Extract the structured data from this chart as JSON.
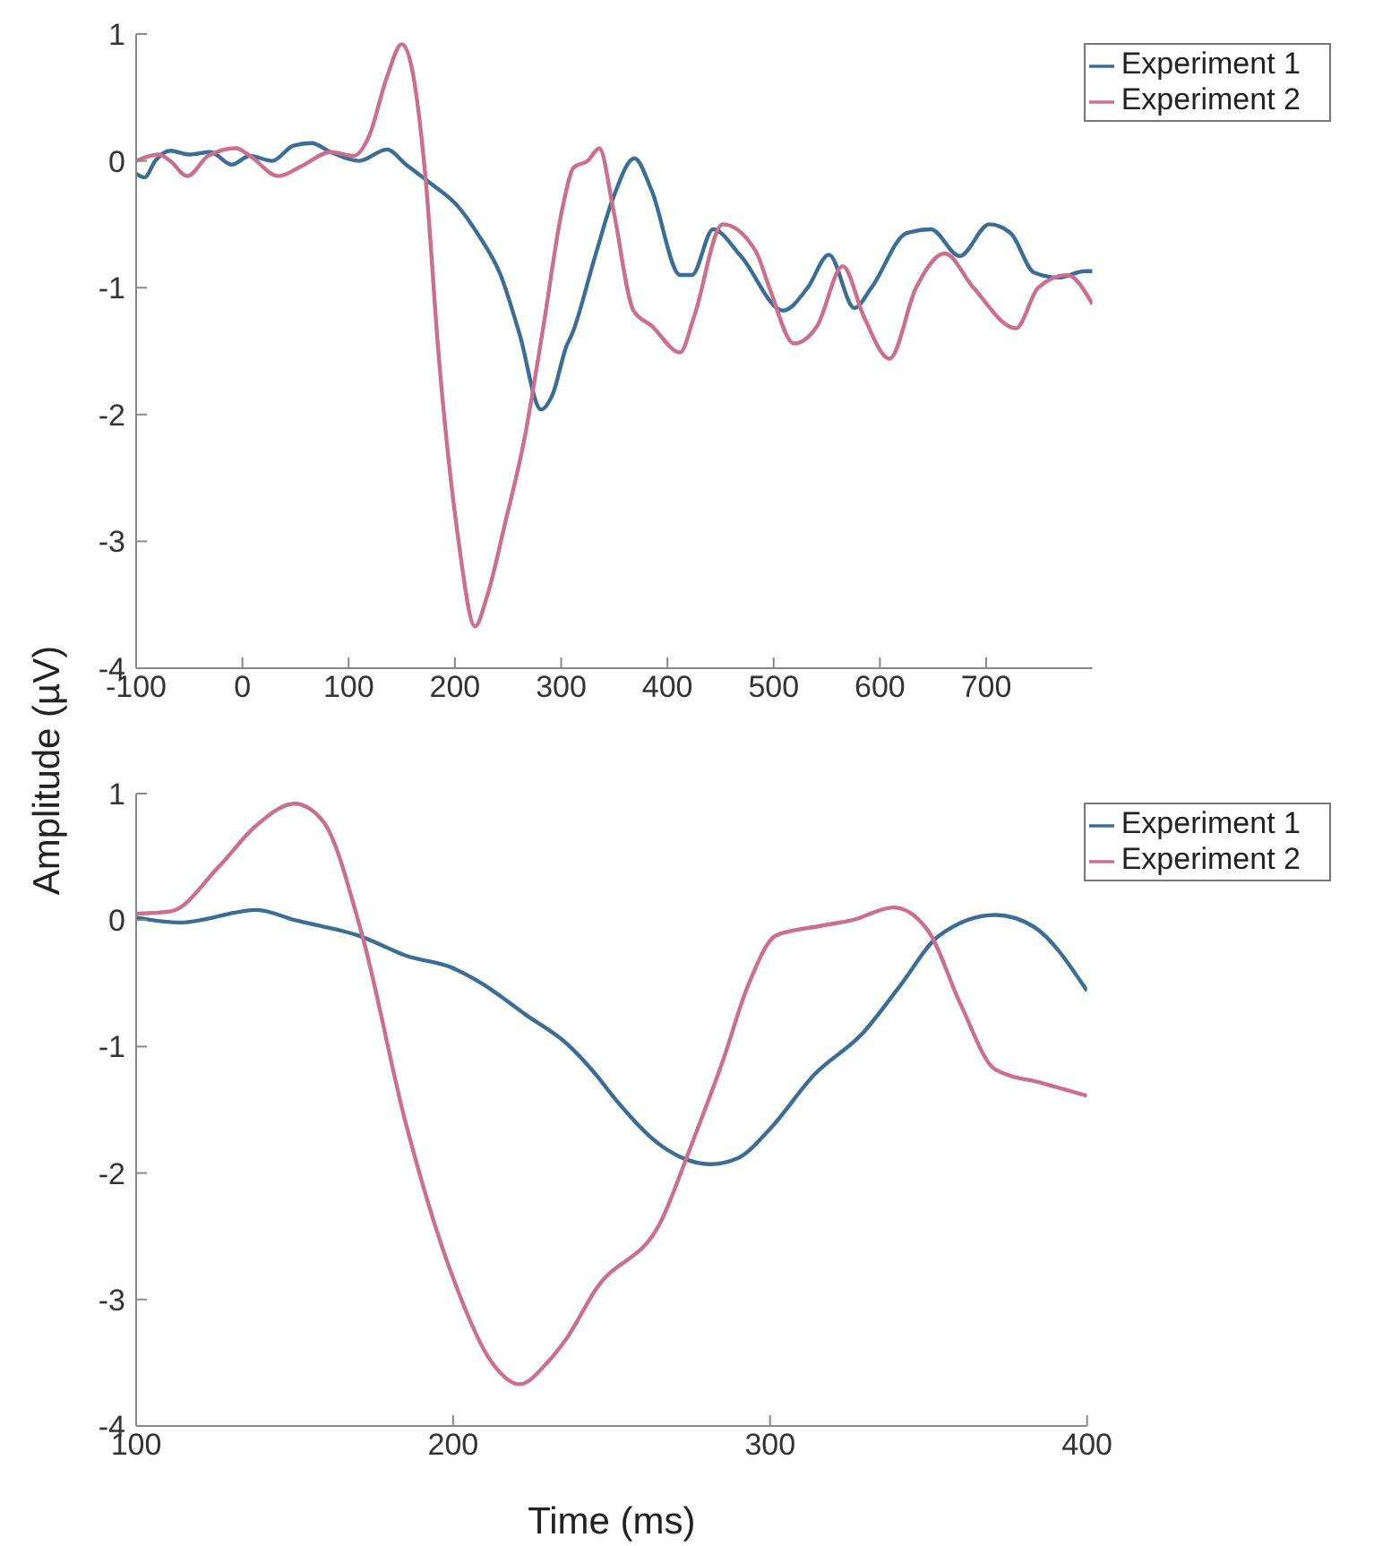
{
  "chart_data": [
    {
      "type": "line",
      "ylabel": "Amplitude (µV)",
      "xlim": [
        -100,
        800
      ],
      "xticks": [
        -100,
        0,
        100,
        200,
        300,
        400,
        500,
        600,
        700
      ],
      "ylim": [
        -4,
        1
      ],
      "yticks": [
        -4,
        -3,
        -2,
        -1,
        0,
        1
      ],
      "legend": "top right",
      "series": [
        {
          "name": "Experiment 1",
          "color": "#3b6e96",
          "x": [
            -100,
            -92,
            -82,
            -68,
            -50,
            -30,
            -10,
            7,
            28,
            48,
            65,
            83,
            110,
            136,
            154,
            176,
            203,
            221,
            243,
            261,
            281,
            292,
            305,
            310,
            332,
            349,
            369,
            385,
            412,
            423,
            443,
            469,
            509,
            532,
            552,
            576,
            592,
            625,
            648,
            675,
            703,
            723,
            745,
            768,
            793,
            800
          ],
          "values": [
            -0.1,
            -0.13,
            0,
            0.08,
            0.05,
            0.07,
            -0.03,
            0.04,
            0,
            0.12,
            0.14,
            0.07,
            0,
            0.09,
            -0.03,
            -0.17,
            -0.36,
            -0.57,
            -0.9,
            -1.37,
            -1.96,
            -1.84,
            -1.46,
            -1.37,
            -0.75,
            -0.29,
            0.02,
            -0.23,
            -0.9,
            -0.9,
            -0.54,
            -0.75,
            -1.18,
            -1,
            -0.74,
            -1.16,
            -1,
            -0.57,
            -0.54,
            -0.75,
            -0.5,
            -0.57,
            -0.88,
            -0.92,
            -0.87,
            -0.87
          ]
        },
        {
          "name": "Experiment 2",
          "color": "#cc6e8e",
          "x": [
            -100,
            -79,
            -68,
            -52,
            -32,
            -6,
            7,
            34,
            56,
            83,
            105,
            119,
            136,
            150,
            159,
            172,
            185,
            203,
            219,
            230,
            248,
            265,
            283,
            301,
            312,
            325,
            336,
            349,
            368,
            385,
            412,
            425,
            452,
            483,
            496,
            519,
            541,
            565,
            585,
            609,
            634,
            661,
            688,
            728,
            749,
            776,
            800
          ],
          "values": [
            0,
            0.05,
            0,
            -0.12,
            0.04,
            0.1,
            0.04,
            -0.12,
            -0.04,
            0.07,
            0.04,
            0.19,
            0.66,
            0.92,
            0.75,
            -0.1,
            -1.56,
            -2.97,
            -3.67,
            -3.44,
            -2.83,
            -2.21,
            -1.32,
            -0.38,
            -0.05,
            0,
            0.1,
            -0.38,
            -1.18,
            -1.3,
            -1.51,
            -1.23,
            -0.5,
            -0.71,
            -1,
            -1.44,
            -1.3,
            -0.83,
            -1.23,
            -1.56,
            -1,
            -0.73,
            -1,
            -1.32,
            -1,
            -0.9,
            -1.13
          ]
        }
      ]
    },
    {
      "type": "line",
      "xlabel": "Time (ms)",
      "xlim": [
        100,
        400
      ],
      "xticks": [
        100,
        200,
        300,
        400
      ],
      "ylim": [
        -4,
        1
      ],
      "yticks": [
        -4,
        -3,
        -2,
        -1,
        0,
        1
      ],
      "legend": "top right",
      "series": [
        {
          "name": "Experiment 1",
          "color": "#3b6e96",
          "x": [
            100,
            114,
            138,
            150,
            171,
            185,
            200,
            209,
            223,
            236,
            245,
            251,
            266,
            281,
            290,
            300,
            314,
            329,
            341,
            353,
            371,
            383,
            400
          ],
          "values": [
            0.02,
            -0.02,
            0.08,
            0,
            -0.13,
            -0.28,
            -0.38,
            -0.5,
            -0.75,
            -0.98,
            -1.22,
            -1.41,
            -1.79,
            -1.93,
            -1.88,
            -1.65,
            -1.22,
            -0.9,
            -0.52,
            -0.13,
            0.04,
            -0.05,
            -0.56
          ]
        },
        {
          "name": "Experiment 2",
          "color": "#cc6e8e",
          "x": [
            100,
            111,
            126,
            138,
            150,
            159,
            171,
            185,
            200,
            212,
            221,
            230,
            236,
            245,
            266,
            275,
            285,
            293,
            302,
            315,
            326,
            339,
            350,
            360,
            371,
            386,
            400
          ],
          "values": [
            0.05,
            0.07,
            0.42,
            0.75,
            0.92,
            0.78,
            -0.09,
            -1.6,
            -2.83,
            -3.49,
            -3.67,
            -3.49,
            -3.3,
            -2.92,
            -2.36,
            -1.79,
            -1.12,
            -0.52,
            -0.12,
            -0.05,
            0,
            0.1,
            -0.09,
            -0.66,
            -1.18,
            -1.29,
            -1.39
          ]
        }
      ]
    }
  ]
}
